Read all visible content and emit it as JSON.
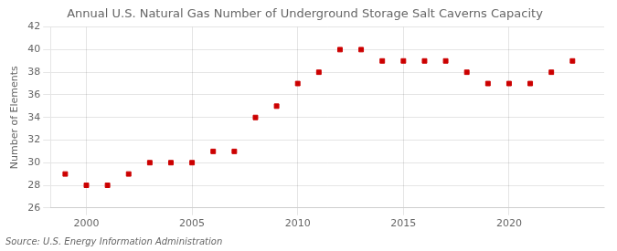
{
  "chart_data": {
    "type": "scatter",
    "title": "Annual U.S. Natural Gas Number of Underground Storage Salt Caverns Capacity",
    "y_label": "Number of Elements",
    "annotations": [
      "Source: U.S. Energy Information Administration"
    ],
    "x": [
      1999,
      2000,
      2001,
      2002,
      2003,
      2004,
      2005,
      2006,
      2007,
      2008,
      2009,
      2010,
      2011,
      2012,
      2013,
      2014,
      2015,
      2016,
      2017,
      2018,
      2019,
      2020,
      2021,
      2022,
      2023
    ],
    "values": [
      29,
      28,
      28,
      29,
      30,
      30,
      30,
      31,
      31,
      34,
      35,
      37,
      38,
      40,
      40,
      39,
      39,
      39,
      39,
      38,
      37,
      37,
      37,
      38,
      39
    ],
    "xlim": [
      1998.3,
      2024.5
    ],
    "xticks": [
      2000,
      2005,
      2010,
      2015,
      2020
    ],
    "ylim": [
      26,
      42
    ],
    "yticks": [
      26,
      28,
      30,
      32,
      34,
      36,
      38,
      40,
      42
    ],
    "color": "#CC0000",
    "marker": "square",
    "grid": true
  }
}
